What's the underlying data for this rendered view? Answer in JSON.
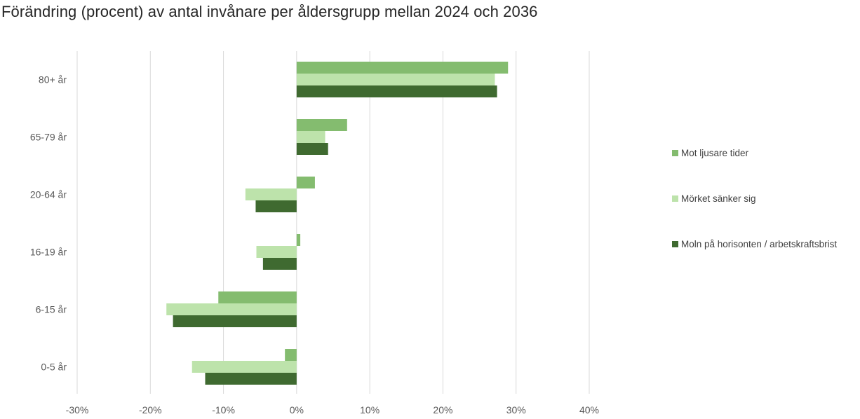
{
  "chart_data": {
    "type": "bar",
    "orientation": "horizontal",
    "title": "Förändring (procent) av antal invånare per åldersgrupp mellan 2024 och 2036",
    "categories": [
      "80+ år",
      "65-79 år",
      "20-64 år",
      "16-19 år",
      "6-15 år",
      "0-5 år"
    ],
    "series": [
      {
        "name": "Mot ljusare tider",
        "color": "#84bc6f",
        "values": [
          28.9,
          6.9,
          2.5,
          0.5,
          -10.7,
          -1.6
        ]
      },
      {
        "name": "Mörket sänker sig",
        "color": "#bde3ab",
        "values": [
          27.1,
          3.9,
          -7.0,
          -5.5,
          -17.8,
          -14.3
        ]
      },
      {
        "name": "Moln på horisonten / arbetskraftsbrist",
        "color": "#3f6a30",
        "values": [
          27.4,
          4.3,
          -5.6,
          -4.6,
          -16.9,
          -12.5
        ]
      }
    ],
    "x_ticks": [
      "-30%",
      "-20%",
      "-10%",
      "0%",
      "10%",
      "20%",
      "30%",
      "40%"
    ],
    "xlim": [
      -30,
      40
    ],
    "xlabel": "",
    "ylabel": "",
    "grid": "vertical",
    "legend_position": "right"
  }
}
